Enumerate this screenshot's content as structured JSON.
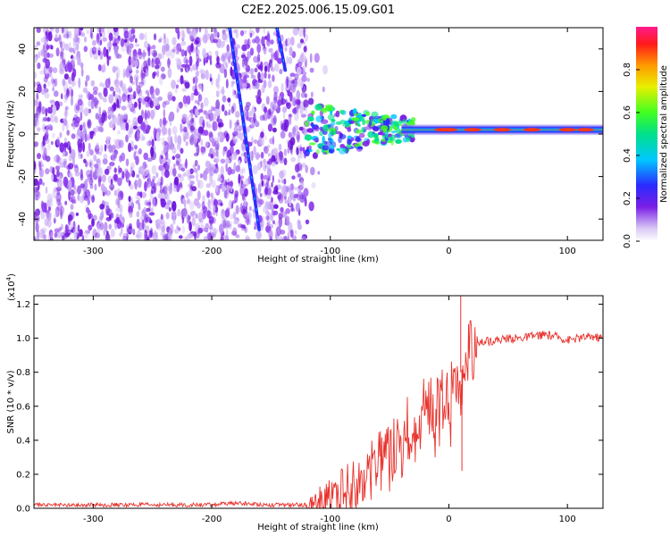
{
  "title": "C2E2.2025.006.15.09.G01",
  "chart_data": [
    {
      "type": "heatmap",
      "xlabel": "Height of straight line (km)",
      "ylabel": "Frequency (Hz)",
      "xlim": [
        -350,
        130
      ],
      "ylim": [
        -50,
        50
      ],
      "xticks": [
        -300,
        -200,
        -100,
        0,
        100
      ],
      "yticks": [
        -40,
        -20,
        0,
        20,
        40
      ],
      "xtick_labels": [
        "-300",
        "-200",
        "-100",
        "0",
        "100"
      ],
      "ytick_labels": [
        "-40",
        "-20",
        "0",
        "20",
        "40"
      ],
      "noise_region_x": [
        -350,
        -120
      ],
      "signal_band": {
        "x": [
          -120,
          130
        ],
        "center_hz": 2,
        "description_values": [
          0,
          1
        ]
      },
      "streaks": [
        {
          "x_start": -185,
          "y_start": 50,
          "x_end": -160,
          "y_end": -45
        },
        {
          "x_start": -145,
          "y_start": 50,
          "x_end": -138,
          "y_end": 30
        }
      ],
      "colorbar": {
        "label": "Normalized spectral amplitude",
        "range": [
          0,
          1
        ],
        "ticks": [
          0.0,
          0.2,
          0.4,
          0.6,
          0.8
        ],
        "tick_labels": [
          "0.0",
          "0.2",
          "0.4",
          "0.6",
          "0.8"
        ]
      }
    },
    {
      "type": "line",
      "xlabel": "Height of straight line (km)",
      "ylabel": "SNR (10 * v/v)",
      "exponent_label": "(x10",
      "exponent_power": "4",
      "exponent_close": ")",
      "xlim": [
        -350,
        130
      ],
      "ylim": [
        0,
        1.25
      ],
      "xticks": [
        -300,
        -200,
        -100,
        0,
        100
      ],
      "yticks": [
        0,
        0.2,
        0.4,
        0.6,
        0.8,
        1.0,
        1.2
      ],
      "xtick_labels": [
        "-300",
        "-200",
        "-100",
        "0",
        "100"
      ],
      "ytick_labels": [
        "0.0",
        "0.2",
        "0.4",
        "0.6",
        "0.8",
        "1.0",
        "1.2"
      ],
      "color": "#e8322c",
      "series": [
        {
          "name": "SNR",
          "x": [
            -350,
            -300,
            -250,
            -200,
            -180,
            -150,
            -120,
            -110,
            -100,
            -90,
            -80,
            -70,
            -60,
            -50,
            -40,
            -30,
            -20,
            -10,
            0,
            5,
            10,
            15,
            20,
            25,
            30,
            40,
            50,
            60,
            70,
            80,
            90,
            100,
            110,
            120,
            130
          ],
          "y": [
            0.02,
            0.02,
            0.02,
            0.02,
            0.03,
            0.02,
            0.02,
            0.04,
            0.08,
            0.12,
            0.15,
            0.2,
            0.28,
            0.35,
            0.45,
            0.5,
            0.58,
            0.62,
            0.65,
            0.72,
            0.8,
            0.88,
            0.94,
            0.97,
            0.98,
            0.99,
            1.0,
            1.0,
            1.01,
            1.02,
            1.01,
            0.99,
            1.0,
            1.01,
            1.0
          ]
        }
      ],
      "spikes": [
        {
          "x": 10,
          "y": 1.25
        },
        {
          "x": 11,
          "y": 0.22
        }
      ]
    }
  ]
}
